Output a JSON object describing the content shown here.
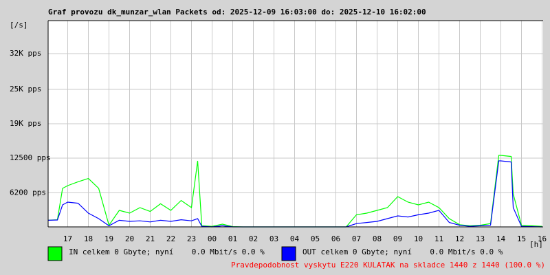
{
  "chart_data": {
    "type": "line",
    "title": "Graf provozu dk_munzar_wlan Packets od: 2025-12-09 16:03:00 do: 2025-12-10 16:02:00",
    "y_label": "[/s]",
    "x_label": "[h]",
    "footer": "Pravdepodobnost vyskytu E220 KULATAK na skladce 1440 z 1440 (100.0 %)",
    "xlim": [
      16.05,
      40.05
    ],
    "xticks": [
      17,
      18,
      19,
      20,
      21,
      22,
      23,
      {
        "value": 24,
        "label": "00"
      },
      {
        "value": 25,
        "label": "01"
      },
      {
        "value": 26,
        "label": "02"
      },
      {
        "value": 27,
        "label": "03"
      },
      {
        "value": 28,
        "label": "04"
      },
      {
        "value": 29,
        "label": "05"
      },
      {
        "value": 30,
        "label": "06"
      },
      {
        "value": 31,
        "label": "07"
      },
      {
        "value": 32,
        "label": "08"
      },
      {
        "value": 33,
        "label": "09"
      },
      {
        "value": 34,
        "label": "10"
      },
      {
        "value": 35,
        "label": "11"
      },
      {
        "value": 36,
        "label": "12"
      },
      {
        "value": 37,
        "label": "13"
      },
      {
        "value": 38,
        "label": "14"
      },
      {
        "value": 39,
        "label": "15"
      },
      {
        "value": 40,
        "label": "16"
      }
    ],
    "ylim": [
      0,
      37500
    ],
    "yticks": [
      {
        "value": 6200,
        "label": "6200 pps"
      },
      {
        "value": 12500,
        "label": "12500 pps"
      },
      {
        "value": 18750,
        "label": "19K pps"
      },
      {
        "value": 25000,
        "label": "25K pps"
      },
      {
        "value": 31500,
        "label": "32K pps"
      }
    ],
    "grid": true,
    "x": [
      16.05,
      16.5,
      16.75,
      17,
      17.5,
      18,
      18.5,
      19,
      19.5,
      20,
      20.5,
      21,
      21.5,
      22,
      22.5,
      23,
      23.3,
      23.5,
      24,
      24.5,
      25,
      25.5,
      26,
      26.5,
      27,
      27.5,
      28,
      28.5,
      29,
      29.5,
      30,
      30.5,
      31,
      31.5,
      32,
      32.5,
      33,
      33.5,
      34,
      34.5,
      35,
      35.5,
      36,
      36.5,
      37,
      37.5,
      37.9,
      38,
      38.5,
      38.6,
      39,
      39.5,
      40
    ],
    "series": [
      {
        "name": "IN celkem 0 Gbyte; nyní    0.0 Mbit/s 0.0 %",
        "color": "#00ff00",
        "values": [
          1200,
          1300,
          7000,
          7500,
          8200,
          8800,
          7000,
          300,
          3000,
          2500,
          3500,
          2800,
          4200,
          3000,
          4800,
          3500,
          12000,
          200,
          100,
          500,
          50,
          0,
          0,
          0,
          0,
          0,
          0,
          0,
          0,
          0,
          0,
          0,
          2200,
          2500,
          3000,
          3500,
          5500,
          4500,
          4000,
          4500,
          3500,
          1500,
          400,
          200,
          300,
          600,
          13000,
          13000,
          12800,
          6000,
          300,
          200,
          100
        ]
      },
      {
        "name": "OUT celkem 0 Gbyte; nyní    0.0 Mbit/s 0.0 %",
        "color": "#0000ff",
        "values": [
          1200,
          1250,
          4000,
          4500,
          4300,
          2500,
          1500,
          200,
          1200,
          1000,
          1100,
          900,
          1200,
          1000,
          1300,
          1100,
          1500,
          100,
          0,
          200,
          0,
          0,
          0,
          0,
          0,
          0,
          0,
          0,
          0,
          0,
          0,
          0,
          600,
          800,
          1000,
          1500,
          2000,
          1800,
          2200,
          2500,
          3000,
          800,
          300,
          100,
          200,
          300,
          12000,
          12000,
          11800,
          3500,
          100,
          50,
          0
        ]
      }
    ]
  }
}
